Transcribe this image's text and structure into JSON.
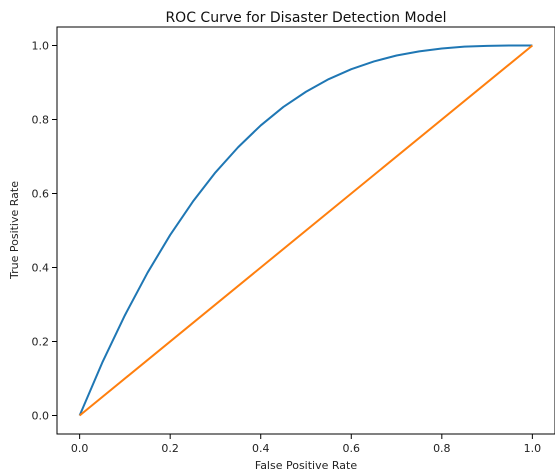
{
  "chart_data": {
    "type": "line",
    "title": "ROC Curve for Disaster Detection Model",
    "xlabel": "False Positive Rate",
    "ylabel": "True Positive Rate",
    "xlim": [
      -0.05,
      1.05
    ],
    "ylim": [
      -0.05,
      1.05
    ],
    "x_ticks": [
      "0.0",
      "0.2",
      "0.4",
      "0.6",
      "0.8",
      "1.0"
    ],
    "y_ticks": [
      "0.0",
      "0.2",
      "0.4",
      "0.6",
      "0.8",
      "1.0"
    ],
    "grid": false,
    "series": [
      {
        "color": "#1f77b4",
        "x": [
          0,
          0.05,
          0.1,
          0.15,
          0.2,
          0.25,
          0.3,
          0.35,
          0.4,
          0.45,
          0.5,
          0.55,
          0.6,
          0.65,
          0.7,
          0.75,
          0.8,
          0.85,
          0.9,
          0.95,
          1.0
        ],
        "y": [
          0,
          0.143,
          0.271,
          0.386,
          0.488,
          0.578,
          0.657,
          0.725,
          0.784,
          0.834,
          0.875,
          0.909,
          0.936,
          0.957,
          0.973,
          0.984,
          0.992,
          0.997,
          0.999,
          1.0,
          1.0
        ]
      },
      {
        "color": "#ff7f0e",
        "x": [
          0,
          1.0
        ],
        "y": [
          0,
          1.0
        ]
      }
    ]
  }
}
